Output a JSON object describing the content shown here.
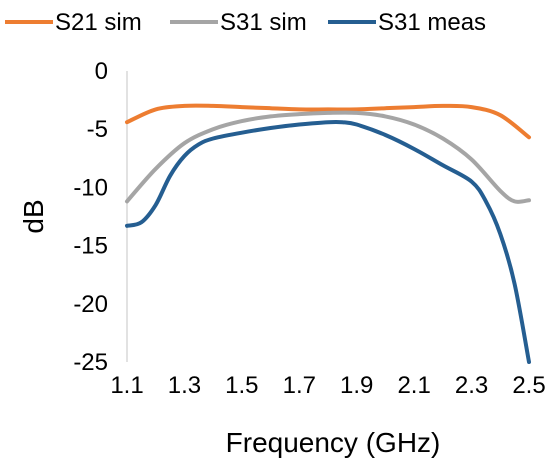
{
  "chart_data": {
    "type": "line",
    "xlabel": "Frequency (GHz)",
    "ylabel": "dB",
    "xlim": [
      1.1,
      2.5
    ],
    "ylim": [
      -25,
      0
    ],
    "x_ticks": [
      "1.1",
      "1.3",
      "1.5",
      "1.7",
      "1.9",
      "2.1",
      "2.3",
      "2.5"
    ],
    "y_ticks": [
      "0",
      "-5",
      "-10",
      "-15",
      "-20",
      "-25"
    ],
    "legend_position": "top",
    "grid": false,
    "series": [
      {
        "name": "S21 sim",
        "color": "#ED7D31",
        "x": [
          1.1,
          1.2,
          1.3,
          1.4,
          1.5,
          1.6,
          1.7,
          1.8,
          1.9,
          2.0,
          2.1,
          2.2,
          2.3,
          2.4,
          2.5
        ],
        "y": [
          -4.4,
          -3.3,
          -3.0,
          -3.0,
          -3.1,
          -3.2,
          -3.3,
          -3.3,
          -3.3,
          -3.2,
          -3.1,
          -3.0,
          -3.1,
          -3.8,
          -5.7
        ]
      },
      {
        "name": "S31 sim",
        "color": "#A5A5A5",
        "x": [
          1.1,
          1.2,
          1.3,
          1.4,
          1.5,
          1.6,
          1.7,
          1.8,
          1.9,
          2.0,
          2.1,
          2.2,
          2.3,
          2.4,
          2.45,
          2.5
        ],
        "y": [
          -11.2,
          -8.4,
          -6.2,
          -5.0,
          -4.3,
          -3.9,
          -3.7,
          -3.6,
          -3.6,
          -3.9,
          -4.6,
          -5.8,
          -7.6,
          -10.3,
          -11.2,
          -11.1
        ]
      },
      {
        "name": "S31 meas",
        "color": "#255E91",
        "x": [
          1.1,
          1.15,
          1.2,
          1.25,
          1.3,
          1.35,
          1.4,
          1.5,
          1.6,
          1.7,
          1.8,
          1.85,
          1.9,
          2.0,
          2.1,
          2.2,
          2.3,
          2.35,
          2.4,
          2.45,
          2.5
        ],
        "y": [
          -13.3,
          -13.0,
          -11.5,
          -9.0,
          -7.3,
          -6.3,
          -5.8,
          -5.3,
          -4.9,
          -4.6,
          -4.4,
          -4.4,
          -4.6,
          -5.5,
          -6.7,
          -8.1,
          -9.5,
          -11.2,
          -14.0,
          -18.3,
          -25.0
        ]
      }
    ]
  }
}
